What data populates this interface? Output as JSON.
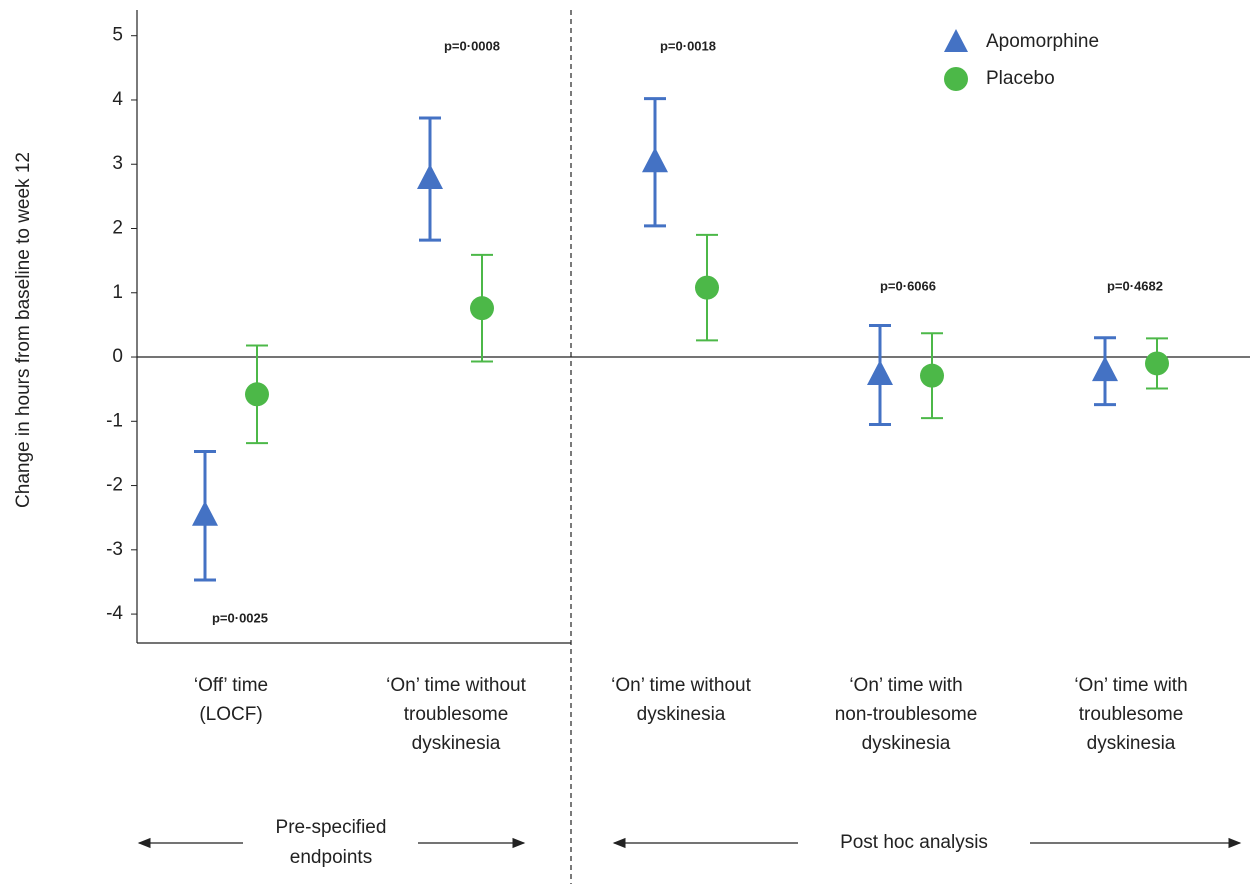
{
  "chart_data": {
    "type": "errorbar",
    "y_label": "Change in hours from baseline to week 12",
    "categories": [
      "‘Off’ time\n(LOCF)",
      "‘On’ time without\ntroublesome\ndyskinesia",
      "‘On’ time without\ndyskinesia",
      "‘On’ time with\nnon-troublesome\ndyskinesia",
      "‘On’ time with\ntroublesome\ndyskinesia"
    ],
    "series": [
      {
        "name": "Apomorphine",
        "color": "#4472c4",
        "marker": "triangle",
        "values": [
          -2.47,
          2.77,
          3.03,
          -0.28,
          -0.22
        ],
        "errors": [
          1.0,
          0.95,
          0.99,
          0.77,
          0.52
        ]
      },
      {
        "name": "Placebo",
        "color": "#4cb848",
        "marker": "circle",
        "values": [
          -0.58,
          0.76,
          1.08,
          -0.29,
          -0.1
        ],
        "errors": [
          0.76,
          0.83,
          0.82,
          0.66,
          0.39
        ]
      }
    ],
    "annotations": [
      "p=0·0025",
      "p=0·0008",
      "p=0·0018",
      "p=0·6066",
      "p=0·4682"
    ],
    "sections": [
      "Pre-specified\nendpoints",
      "Post hoc analysis"
    ],
    "ylim": [
      -4.45,
      5.4
    ],
    "yticks": [
      5,
      4,
      3,
      2,
      1,
      0,
      -1,
      -2,
      -3,
      -4
    ],
    "zero_line": true
  }
}
